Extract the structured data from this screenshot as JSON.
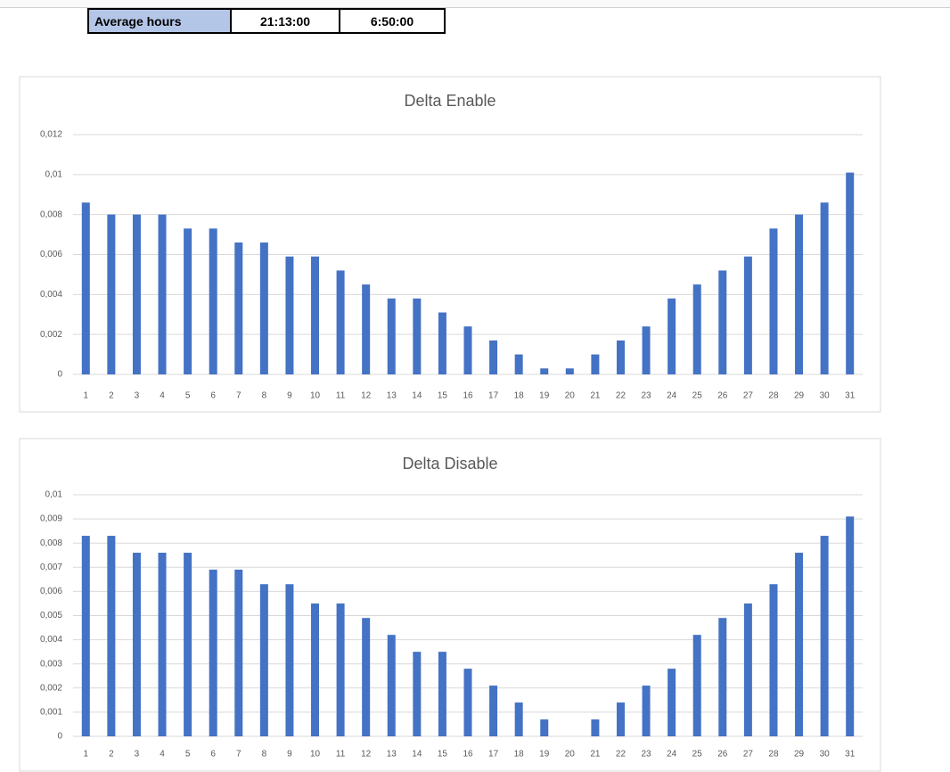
{
  "table": {
    "rows": [
      [
        "Average hours",
        "21:13:00",
        "6:50:00"
      ]
    ]
  },
  "chart_data": [
    {
      "type": "bar",
      "title": "Delta Enable",
      "color": "#4472c4",
      "grid": true,
      "categories": [
        "1",
        "2",
        "3",
        "4",
        "5",
        "6",
        "7",
        "8",
        "9",
        "10",
        "11",
        "12",
        "13",
        "14",
        "15",
        "16",
        "17",
        "18",
        "19",
        "20",
        "21",
        "22",
        "23",
        "24",
        "25",
        "26",
        "27",
        "28",
        "29",
        "30",
        "31"
      ],
      "values": [
        0.0086,
        0.008,
        0.008,
        0.008,
        0.0073,
        0.0073,
        0.0066,
        0.0066,
        0.0059,
        0.0059,
        0.0052,
        0.0045,
        0.0038,
        0.0038,
        0.0031,
        0.0024,
        0.0017,
        0.001,
        0.0003,
        0.0003,
        0.001,
        0.0017,
        0.0024,
        0.0038,
        0.0045,
        0.0052,
        0.0059,
        0.0073,
        0.008,
        0.0086,
        0.0101
      ],
      "ylim": [
        0,
        0.012
      ],
      "yticks": [
        0,
        {
          "value": 0.002,
          "label": "0,002"
        },
        {
          "value": 0.004,
          "label": "0,004"
        },
        {
          "value": 0.006,
          "label": "0,006"
        },
        {
          "value": 0.008,
          "label": "0,008"
        },
        {
          "value": 0.01,
          "label": "0,01"
        },
        {
          "value": 0.012,
          "label": "0,012"
        }
      ]
    },
    {
      "type": "bar",
      "title": "Delta Disable",
      "color": "#4472c4",
      "grid": true,
      "categories": [
        "1",
        "2",
        "3",
        "4",
        "5",
        "6",
        "7",
        "8",
        "9",
        "10",
        "11",
        "12",
        "13",
        "14",
        "15",
        "16",
        "17",
        "18",
        "19",
        "20",
        "21",
        "22",
        "23",
        "24",
        "25",
        "26",
        "27",
        "28",
        "29",
        "30",
        "31"
      ],
      "values": [
        0.0083,
        0.0083,
        0.0076,
        0.0076,
        0.0076,
        0.0069,
        0.0069,
        0.0063,
        0.0063,
        0.0055,
        0.0055,
        0.0049,
        0.0042,
        0.0035,
        0.0035,
        0.0028,
        0.0021,
        0.0014,
        0.0007,
        0,
        0.0007,
        0.0014,
        0.0021,
        0.0028,
        0.0042,
        0.0049,
        0.0055,
        0.0063,
        0.0076,
        0.0083,
        0.0091
      ],
      "ylim": [
        0,
        0.01
      ],
      "yticks": [
        0,
        {
          "value": 0.001,
          "label": "0,001"
        },
        {
          "value": 0.002,
          "label": "0,002"
        },
        {
          "value": 0.003,
          "label": "0,003"
        },
        {
          "value": 0.004,
          "label": "0,004"
        },
        {
          "value": 0.005,
          "label": "0,005"
        },
        {
          "value": 0.006,
          "label": "0,006"
        },
        {
          "value": 0.007,
          "label": "0,007"
        },
        {
          "value": 0.008,
          "label": "0,008"
        },
        {
          "value": 0.009,
          "label": "0,009"
        },
        {
          "value": 0.01,
          "label": "0,01"
        }
      ]
    }
  ]
}
